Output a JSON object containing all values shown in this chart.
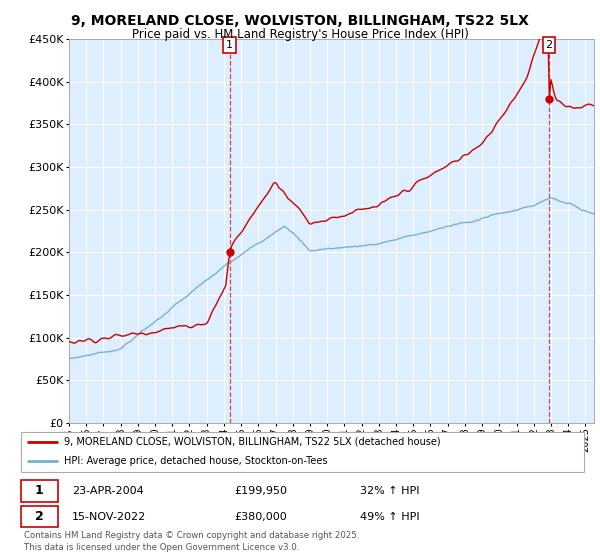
{
  "title": "9, MORELAND CLOSE, WOLVISTON, BILLINGHAM, TS22 5LX",
  "subtitle": "Price paid vs. HM Land Registry's House Price Index (HPI)",
  "legend_line1": "9, MORELAND CLOSE, WOLVISTON, BILLINGHAM, TS22 5LX (detached house)",
  "legend_line2": "HPI: Average price, detached house, Stockton-on-Tees",
  "footnote": "Contains HM Land Registry data © Crown copyright and database right 2025.\nThis data is licensed under the Open Government Licence v3.0.",
  "sale1_label": "1",
  "sale2_label": "2",
  "sale1_date": "23-APR-2004",
  "sale1_price": "£199,950",
  "sale1_hpi": "32% ↑ HPI",
  "sale2_date": "15-NOV-2022",
  "sale2_price": "£380,000",
  "sale2_hpi": "49% ↑ HPI",
  "red_color": "#cc0000",
  "blue_color": "#7aafd4",
  "grid_color": "#cccccc",
  "bg_color": "#ddeeff",
  "ylim": [
    0,
    450000
  ],
  "yticks": [
    0,
    50000,
    100000,
    150000,
    200000,
    250000,
    300000,
    350000,
    400000,
    450000
  ],
  "sale1_year": 2004.33,
  "sale2_year": 2022.88,
  "sale1_price_val": 199950,
  "sale2_price_val": 380000,
  "xmin": 1995,
  "xmax": 2025
}
